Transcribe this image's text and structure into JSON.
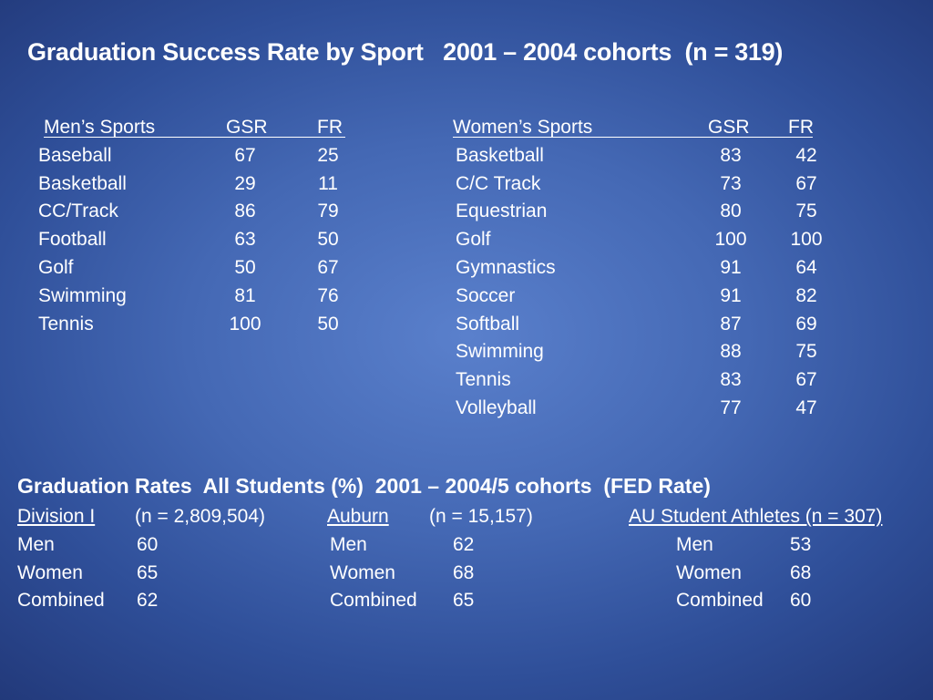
{
  "title": "Graduation Success Rate by Sport   2001 – 2004 cohorts  (n = 319)",
  "mens": {
    "header": {
      "sport": "Men’s Sports",
      "gsr": "GSR",
      "fr": "FR"
    },
    "rows": [
      {
        "sport": "Baseball",
        "gsr": "67",
        "fr": "25"
      },
      {
        "sport": "Basketball",
        "gsr": "29",
        "fr": "11"
      },
      {
        "sport": "CC/Track",
        "gsr": "86",
        "fr": "79"
      },
      {
        "sport": "Football",
        "gsr": "63",
        "fr": "50"
      },
      {
        "sport": "Golf",
        "gsr": "50",
        "fr": "67"
      },
      {
        "sport": "Swimming",
        "gsr": "81",
        "fr": "76"
      },
      {
        "sport": "Tennis",
        "gsr": "100",
        "fr": "50"
      }
    ]
  },
  "womens": {
    "header": {
      "sport": "Women’s Sports",
      "gsr": "GSR",
      "fr": "FR"
    },
    "rows": [
      {
        "sport": "Basketball",
        "gsr": "83",
        "fr": "42"
      },
      {
        "sport": "C/C Track",
        "gsr": "73",
        "fr": "67"
      },
      {
        "sport": "Equestrian",
        "gsr": "80",
        "fr": "75"
      },
      {
        "sport": "Golf",
        "gsr": "100",
        "fr": "100"
      },
      {
        "sport": "Gymnastics",
        "gsr": "91",
        "fr": "64"
      },
      {
        "sport": "Soccer",
        "gsr": "91",
        "fr": "82"
      },
      {
        "sport": "Softball",
        "gsr": "87",
        "fr": "69"
      },
      {
        "sport": "Swimming",
        "gsr": "88",
        "fr": "75"
      },
      {
        "sport": "Tennis",
        "gsr": "83",
        "fr": "67"
      },
      {
        "sport": "Volleyball",
        "gsr": "77",
        "fr": "47"
      }
    ]
  },
  "all_students": {
    "title": "Graduation Rates  All Students (%)  2001 – 2004/5 cohorts  (FED Rate)",
    "division": {
      "label": "Division I",
      "n": "(n = 2,809,504)",
      "rows": [
        {
          "label": "Men",
          "value": "60"
        },
        {
          "label": "Women",
          "value": "65"
        },
        {
          "label": "Combined",
          "value": "62"
        }
      ]
    },
    "auburn": {
      "label": "Auburn",
      "n": "(n = 15,157)",
      "rows": [
        {
          "label": "Men",
          "value": "62"
        },
        {
          "label": "Women",
          "value": "68"
        },
        {
          "label": "Combined",
          "value": "65"
        }
      ]
    },
    "athletes": {
      "label": "AU Student Athletes (n = 307)",
      "rows": [
        {
          "label": "Men",
          "value": "53"
        },
        {
          "label": "Women",
          "value": "68"
        },
        {
          "label": "Combined",
          "value": "60"
        }
      ]
    }
  }
}
